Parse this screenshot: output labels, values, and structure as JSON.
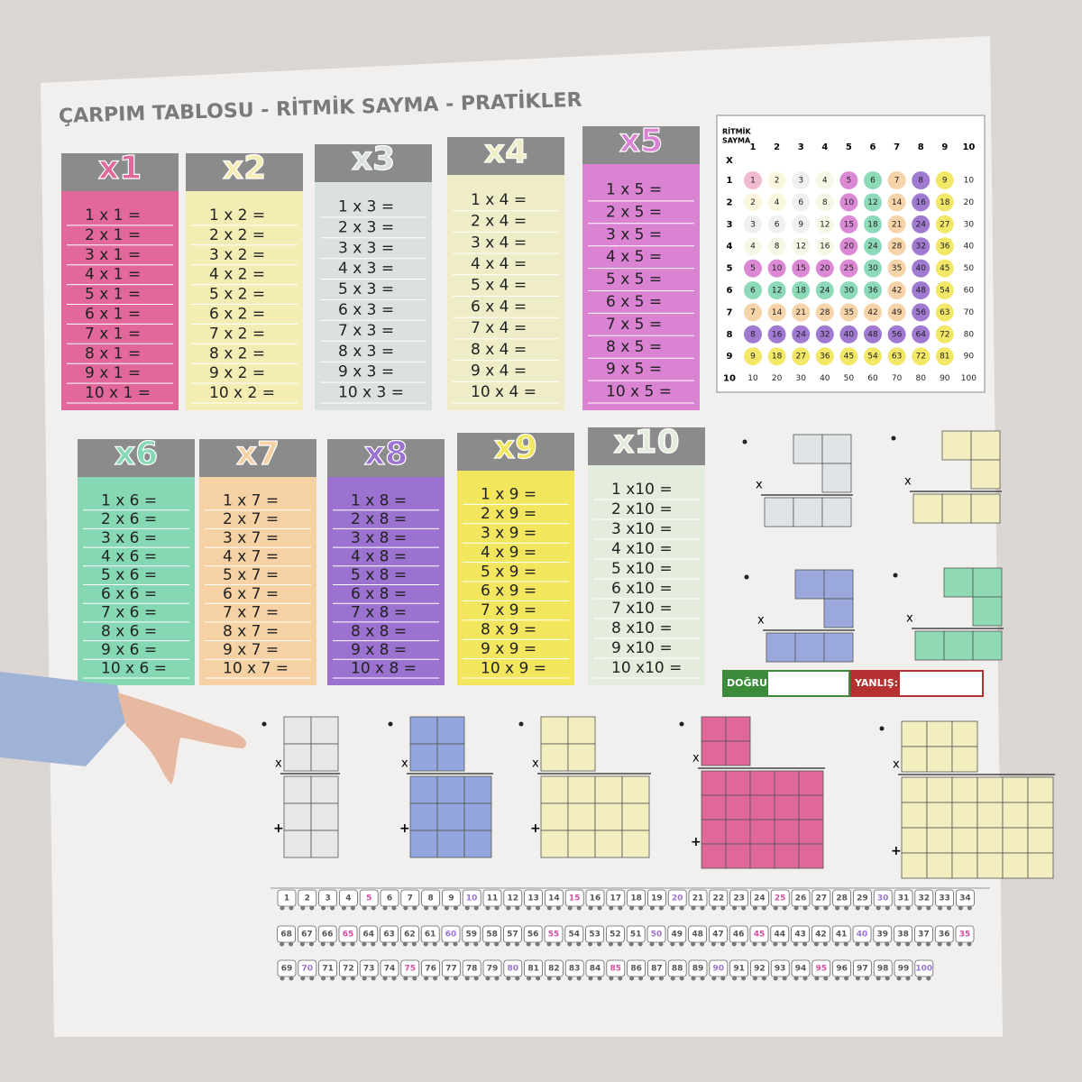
{
  "title": "ÇARPIM TABLOSU - RİTMİK SAYMA - PRATİKLER",
  "tables": [
    {
      "label": "x1",
      "color": "#e2679a",
      "rows": [
        "1 x 1 =",
        "2 x 1 =",
        "3 x 1 =",
        "4 x 1 =",
        "5 x 1 =",
        "6 x 1 =",
        "7 x 1 =",
        "8 x 1 =",
        "9 x 1 =",
        "10 x 1 ="
      ]
    },
    {
      "label": "x2",
      "color": "#f3edb4",
      "rows": [
        "1 x 2 =",
        "2 x 2 =",
        "3 x 2 =",
        "4 x 2 =",
        "5 x 2 =",
        "6 x 2 =",
        "7 x 2 =",
        "8 x 2 =",
        "9 x 2 =",
        "10 x 2 ="
      ]
    },
    {
      "label": "x3",
      "color": "#dbe1e0",
      "rows": [
        "1 x 3 =",
        "2 x 3 =",
        "3 x 3 =",
        "4 x 3 =",
        "5 x 3 =",
        "6 x 3 =",
        "7 x 3 =",
        "8 x 3 =",
        "9 x 3 =",
        "10 x 3 ="
      ]
    },
    {
      "label": "x4",
      "color": "#eeedc8",
      "rows": [
        "1 x 4 =",
        "2 x 4 =",
        "3 x 4 =",
        "4 x 4 =",
        "5 x 4 =",
        "6 x 4 =",
        "7 x 4 =",
        "8 x 4 =",
        "9 x 4 =",
        "10 x 4 ="
      ]
    },
    {
      "label": "x5",
      "color": "#d983d2",
      "rows": [
        "1 x 5 =",
        "2 x 5 =",
        "3 x 5 =",
        "4 x 5 =",
        "5 x 5 =",
        "6 x 5 =",
        "7 x 5 =",
        "8 x 5 =",
        "9 x 5 =",
        "10 x 5 ="
      ]
    },
    {
      "label": "x6",
      "color": "#86d8b4",
      "rows": [
        "1 x 6 =",
        "2 x 6 =",
        "3 x 6 =",
        "4 x 6 =",
        "5 x 6 =",
        "6 x 6 =",
        "7 x 6 =",
        "8 x 6 =",
        "9 x 6 =",
        "10 x 6 ="
      ]
    },
    {
      "label": "x7",
      "color": "#f5d1a3",
      "rows": [
        "1 x 7 =",
        "2 x 7 =",
        "3 x 7 =",
        "4 x 7 =",
        "5 x 7 =",
        "6 x 7 =",
        "7 x 7 =",
        "8 x 7 =",
        "9 x 7 =",
        "10 x 7 ="
      ]
    },
    {
      "label": "x8",
      "color": "#9b72cf",
      "rows": [
        "1 x 8 =",
        "2 x 8 =",
        "3 x 8 =",
        "4 x 8 =",
        "5 x 8 =",
        "6 x 8 =",
        "7 x 8 =",
        "8 x 8 =",
        "9 x 8 =",
        "10 x 8 ="
      ]
    },
    {
      "label": "x9",
      "color": "#f1e65e",
      "rows": [
        "1 x 9 =",
        "2 x 9 =",
        "3 x 9 =",
        "4 x 9 =",
        "5 x 9 =",
        "6 x 9 =",
        "7 x 9 =",
        "8 x 9 =",
        "9 x 9 =",
        "10 x 9 ="
      ]
    },
    {
      "label": "x10",
      "color": "#e4ecde",
      "rows": [
        "1 x10 =",
        "2 x10 =",
        "3 x10 =",
        "4 x10 =",
        "5 x10 =",
        "6 x10 =",
        "7 x10 =",
        "8 x10 =",
        "9 x10 =",
        "10 x10 ="
      ]
    }
  ],
  "grid": {
    "title": [
      "RİTMİK",
      "SAYMA"
    ],
    "corner": "X",
    "col_headers": [
      1,
      2,
      3,
      4,
      5,
      6,
      7,
      8,
      9,
      10
    ],
    "row_headers": [
      1,
      2,
      3,
      4,
      5,
      6,
      7,
      8,
      9,
      10
    ],
    "cells": [
      [
        1,
        2,
        3,
        4,
        5,
        6,
        7,
        8,
        9,
        10
      ],
      [
        2,
        4,
        6,
        8,
        10,
        12,
        14,
        16,
        18,
        20
      ],
      [
        3,
        6,
        9,
        12,
        15,
        18,
        21,
        24,
        27,
        30
      ],
      [
        4,
        8,
        12,
        16,
        20,
        24,
        28,
        32,
        36,
        40
      ],
      [
        5,
        10,
        15,
        20,
        25,
        30,
        35,
        40,
        45,
        50
      ],
      [
        6,
        12,
        18,
        24,
        30,
        36,
        42,
        48,
        54,
        60
      ],
      [
        7,
        14,
        21,
        28,
        35,
        42,
        49,
        56,
        63,
        70
      ],
      [
        8,
        16,
        24,
        32,
        40,
        48,
        56,
        64,
        72,
        80
      ],
      [
        9,
        18,
        27,
        36,
        45,
        54,
        63,
        72,
        81,
        90
      ],
      [
        10,
        20,
        30,
        40,
        50,
        60,
        70,
        80,
        90,
        100
      ]
    ]
  },
  "practice": {
    "times": "x",
    "plus": "+",
    "correct": "DOĞRU:",
    "wrong": "YANLIŞ:"
  },
  "train": [
    1,
    2,
    3,
    4,
    5,
    6,
    7,
    8,
    9,
    10,
    11,
    12,
    13,
    14,
    15,
    16,
    17,
    18,
    19,
    20,
    21,
    22,
    23,
    24,
    25,
    26,
    27,
    28,
    29,
    30,
    31,
    32,
    33,
    34,
    35,
    36,
    37,
    38,
    39,
    40,
    41,
    42,
    43,
    44,
    45,
    46,
    47,
    48,
    49,
    50,
    51,
    52,
    53,
    54,
    55,
    56,
    57,
    58,
    59,
    60,
    61,
    62,
    63,
    64,
    65,
    66,
    67,
    68,
    69,
    70,
    71,
    72,
    73,
    74,
    75,
    76,
    77,
    78,
    79,
    80,
    81,
    82,
    83,
    84,
    85,
    86,
    87,
    88,
    89,
    90,
    91,
    92,
    93,
    94,
    95,
    96,
    97,
    98,
    99,
    100
  ]
}
